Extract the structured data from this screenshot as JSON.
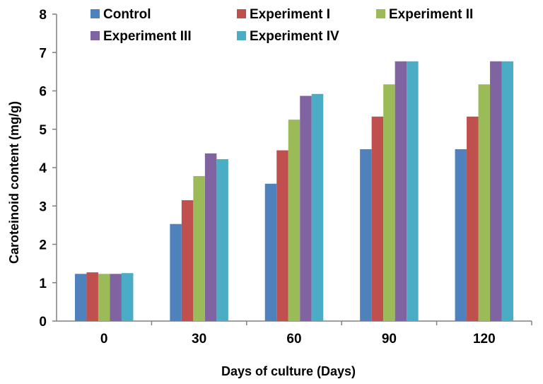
{
  "chart_data": {
    "type": "bar",
    "xlabel": "Days of culture (Days)",
    "ylabel": "Caroteinoid content (mg/g)",
    "ylim": [
      0,
      8
    ],
    "yticks": [
      "0",
      "1",
      "2",
      "3",
      "4",
      "5",
      "6",
      "7",
      "8"
    ],
    "categories": [
      "0",
      "30",
      "60",
      "90",
      "120"
    ],
    "series": [
      {
        "name": "Control",
        "color": "#4F81BD",
        "values": [
          1.23,
          2.53,
          3.58,
          4.48,
          4.48
        ]
      },
      {
        "name": "Experiment I",
        "color": "#C0504D",
        "values": [
          1.27,
          3.15,
          4.45,
          5.33,
          5.33
        ]
      },
      {
        "name": "Experiment II",
        "color": "#9BBB59",
        "values": [
          1.23,
          3.78,
          5.25,
          6.17,
          6.17
        ]
      },
      {
        "name": "Experiment III",
        "color": "#8064A2",
        "values": [
          1.23,
          4.37,
          5.87,
          6.77,
          6.77
        ]
      },
      {
        "name": "Experiment IV",
        "color": "#4BACC6",
        "values": [
          1.25,
          4.22,
          5.92,
          6.77,
          6.77
        ]
      }
    ],
    "legend_position": "top",
    "grid": false
  }
}
